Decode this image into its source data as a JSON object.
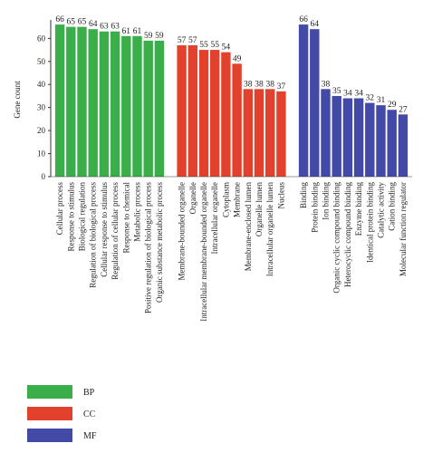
{
  "chart_data": {
    "type": "bar",
    "y_label": "Gene count",
    "ylim": [
      0,
      68
    ],
    "yticks": [
      0,
      10,
      20,
      30,
      40,
      50,
      60
    ],
    "groups": [
      {
        "name": "BP",
        "color": "#3aae49",
        "categories": [
          "Cellular process",
          "Response to stimulus",
          "Biological regulation",
          "Regulation of biological process",
          "Cellular response to stimulus",
          "Regulation of cellular process",
          "Response to chemical",
          "Metabolic process",
          "Positive regulation of biological process",
          "Organic substance metabolic process"
        ],
        "values": [
          66,
          65,
          65,
          64,
          63,
          63,
          61,
          61,
          59,
          59
        ]
      },
      {
        "name": "CC",
        "color": "#e2412e",
        "categories": [
          "Membrane-bounded organelle",
          "Organelle",
          "Intracellular membrane-bounded organelle",
          "Intracellular organelle",
          "Cytoplasm",
          "Membrane",
          "Membrane-enclosed lumen",
          "Organelle lumen",
          "Intracellular organelle lumen",
          "Nucleus"
        ],
        "values": [
          57,
          57,
          55,
          55,
          54,
          49,
          38,
          38,
          38,
          37
        ]
      },
      {
        "name": "MF",
        "color": "#4249a6",
        "categories": [
          "Binding",
          "Protein binding",
          "Ion binding",
          "Organic cyclic compound binding",
          "Heterocyclic compound binding",
          "Enzyme binding",
          "Identical protein binding",
          "Catalytic activity",
          "Cation binding",
          "Molecular function regulator"
        ],
        "values": [
          66,
          64,
          38,
          35,
          34,
          34,
          32,
          31,
          29,
          27
        ]
      }
    ]
  }
}
